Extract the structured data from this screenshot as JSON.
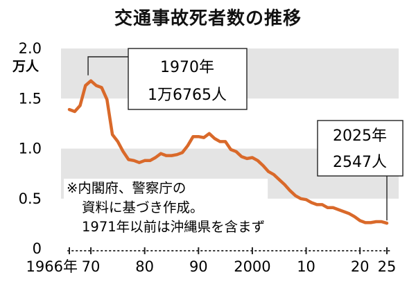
{
  "chart_data": {
    "type": "line",
    "title": "交通事故死者数の推移",
    "ylabel": "万人",
    "ylim": [
      0,
      2.0
    ],
    "xlim": [
      1966,
      2025
    ],
    "y_ticks": [
      {
        "value": 0,
        "label": "0"
      },
      {
        "value": 0.5,
        "label": "0.5"
      },
      {
        "value": 1.0,
        "label": "1.0"
      },
      {
        "value": 1.5,
        "label": "1.5"
      },
      {
        "value": 2.0,
        "label": "2.0"
      }
    ],
    "x_ticks": [
      {
        "value": 1966,
        "label": "1966年"
      },
      {
        "value": 1970,
        "label": "70"
      },
      {
        "value": 1980,
        "label": "80"
      },
      {
        "value": 1990,
        "label": "90"
      },
      {
        "value": 2000,
        "label": "2000"
      },
      {
        "value": 2010,
        "label": "10"
      },
      {
        "value": 2020,
        "label": "20"
      },
      {
        "value": 2025,
        "label": "25"
      }
    ],
    "grid": "alternating horizontal bands",
    "series": [
      {
        "color": "#d9692a",
        "x": [
          1966,
          1967,
          1968,
          1969,
          1970,
          1971,
          1972,
          1973,
          1974,
          1975,
          1976,
          1977,
          1978,
          1979,
          1980,
          1981,
          1982,
          1983,
          1984,
          1985,
          1986,
          1987,
          1988,
          1989,
          1990,
          1991,
          1992,
          1993,
          1994,
          1995,
          1996,
          1997,
          1998,
          1999,
          2000,
          2001,
          2002,
          2003,
          2004,
          2005,
          2006,
          2007,
          2008,
          2009,
          2010,
          2011,
          2012,
          2013,
          2014,
          2015,
          2016,
          2017,
          2018,
          2019,
          2020,
          2021,
          2022,
          2023,
          2024,
          2025
        ],
        "values": [
          1.39,
          1.37,
          1.43,
          1.63,
          1.6765,
          1.63,
          1.61,
          1.49,
          1.14,
          1.07,
          0.97,
          0.89,
          0.88,
          0.86,
          0.88,
          0.88,
          0.91,
          0.95,
          0.93,
          0.93,
          0.94,
          0.96,
          1.03,
          1.12,
          1.12,
          1.11,
          1.15,
          1.1,
          1.07,
          1.07,
          0.99,
          0.97,
          0.92,
          0.9,
          0.91,
          0.88,
          0.83,
          0.77,
          0.74,
          0.69,
          0.64,
          0.58,
          0.53,
          0.5,
          0.49,
          0.46,
          0.44,
          0.44,
          0.41,
          0.41,
          0.39,
          0.37,
          0.35,
          0.32,
          0.28,
          0.26,
          0.26,
          0.27,
          0.27,
          0.2547
        ]
      }
    ],
    "annotations": [
      {
        "x": 1970,
        "value": 1.6765,
        "year_label": "1970年",
        "value_label": "1万6765人"
      },
      {
        "x": 2025,
        "value": 0.2547,
        "year_label": "2025年",
        "value_label": "2547人"
      }
    ],
    "note": [
      "※内閣府、警察庁の",
      "資料に基づき作成。",
      "1971年以前は沖縄県を含まず"
    ]
  }
}
